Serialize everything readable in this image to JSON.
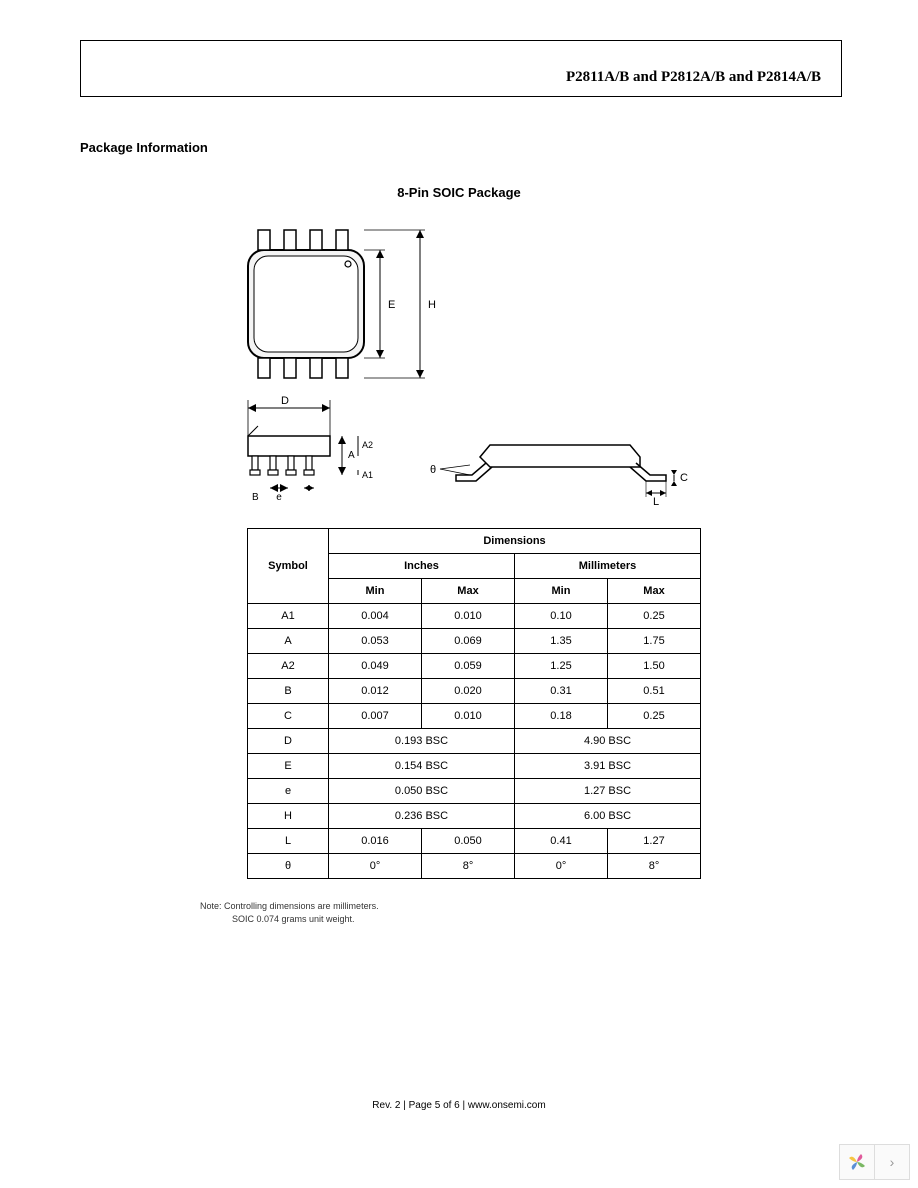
{
  "header": {
    "part_numbers": "P2811A/B and P2812A/B and P2814A/B"
  },
  "section_title": "Package Information",
  "package_title": "8-Pin SOIC Package",
  "diagram": {
    "labels": {
      "E": "E",
      "H": "H",
      "D": "D",
      "A": "A",
      "A1": "A1",
      "A2": "A2",
      "B": "B",
      "e": "e",
      "theta": "θ",
      "C": "C",
      "L": "L",
      "pin1_dot": "○"
    }
  },
  "table": {
    "header_dimensions": "Dimensions",
    "header_symbol": "Symbol",
    "header_inches": "Inches",
    "header_mm": "Millimeters",
    "header_min": "Min",
    "header_max": "Max",
    "rows": [
      {
        "sym": "A1",
        "in_min": "0.004",
        "in_max": "0.010",
        "mm_min": "0.10",
        "mm_max": "0.25",
        "span": false
      },
      {
        "sym": "A",
        "in_min": "0.053",
        "in_max": "0.069",
        "mm_min": "1.35",
        "mm_max": "1.75",
        "span": false
      },
      {
        "sym": "A2",
        "in_min": "0.049",
        "in_max": "0.059",
        "mm_min": "1.25",
        "mm_max": "1.50",
        "span": false
      },
      {
        "sym": "B",
        "in_min": "0.012",
        "in_max": "0.020",
        "mm_min": "0.31",
        "mm_max": "0.51",
        "span": false
      },
      {
        "sym": "C",
        "in_min": "0.007",
        "in_max": "0.010",
        "mm_min": "0.18",
        "mm_max": "0.25",
        "span": false
      },
      {
        "sym": "D",
        "in_span": "0.193 BSC",
        "mm_span": "4.90 BSC",
        "span": true
      },
      {
        "sym": "E",
        "in_span": "0.154 BSC",
        "mm_span": "3.91 BSC",
        "span": true
      },
      {
        "sym": "e",
        "in_span": "0.050 BSC",
        "mm_span": "1.27 BSC",
        "span": true
      },
      {
        "sym": "H",
        "in_span": "0.236 BSC",
        "mm_span": "6.00 BSC",
        "span": true
      },
      {
        "sym": "L",
        "in_min": "0.016",
        "in_max": "0.050",
        "mm_min": "0.41",
        "mm_max": "1.27",
        "span": false
      },
      {
        "sym": "θ",
        "in_min": "0°",
        "in_max": "8°",
        "mm_min": "0°",
        "mm_max": "8°",
        "span": false
      }
    ]
  },
  "notes": {
    "line1": "Note: Controlling dimensions are millimeters.",
    "line2": "SOIC 0.074 grams unit weight."
  },
  "footer": "Rev. 2 | Page 5 of 6 | www.onsemi.com",
  "nav": {
    "logo_colors": [
      "#f6c544",
      "#e05a9b",
      "#7ab863",
      "#5b8fd6"
    ],
    "chevron": "›"
  }
}
